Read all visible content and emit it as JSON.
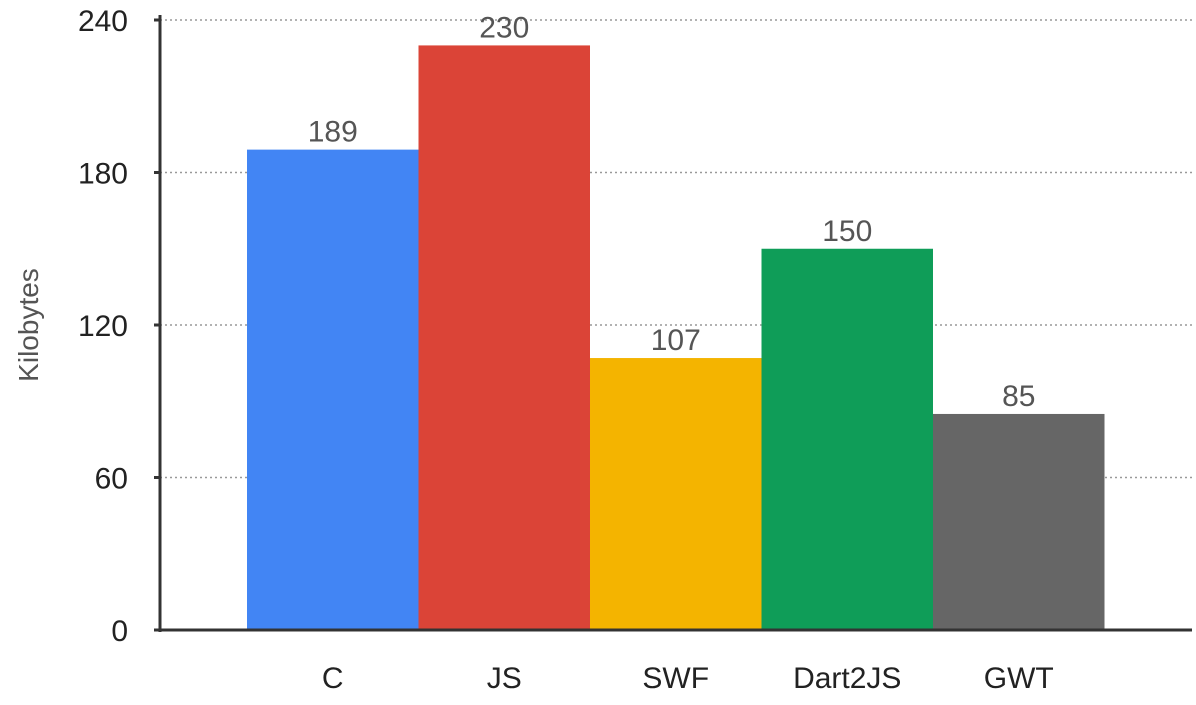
{
  "chart_data": {
    "type": "bar",
    "title": "",
    "xlabel": "",
    "ylabel": "Kilobytes",
    "ylim": [
      0,
      240
    ],
    "yticks": [
      0,
      60,
      120,
      180,
      240
    ],
    "grid": true,
    "categories": [
      "C",
      "JS",
      "SWF",
      "Dart2JS",
      "GWT"
    ],
    "values": [
      189,
      230,
      107,
      150,
      85
    ],
    "colors": [
      "#4285f4",
      "#db4437",
      "#f4b400",
      "#0f9d58",
      "#666666"
    ]
  }
}
